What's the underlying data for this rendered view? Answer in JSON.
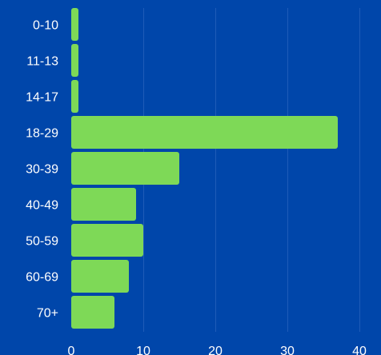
{
  "chart_data": {
    "type": "bar",
    "orientation": "horizontal",
    "categories": [
      "0-10",
      "11-13",
      "14-17",
      "18-29",
      "30-39",
      "40-49",
      "50-59",
      "60-69",
      "70+"
    ],
    "values": [
      1,
      1,
      1,
      37,
      15,
      9,
      10,
      8,
      6
    ],
    "xlim": [
      0,
      40
    ],
    "xticks": [
      0,
      10,
      20,
      30,
      40
    ],
    "title": "",
    "xlabel": "",
    "ylabel": "",
    "grid": true,
    "legend": "none",
    "colors": {
      "background": "#0046aa",
      "bar": "#7ed957",
      "grid": "#1f5cb8",
      "text": "#ffffff"
    }
  }
}
